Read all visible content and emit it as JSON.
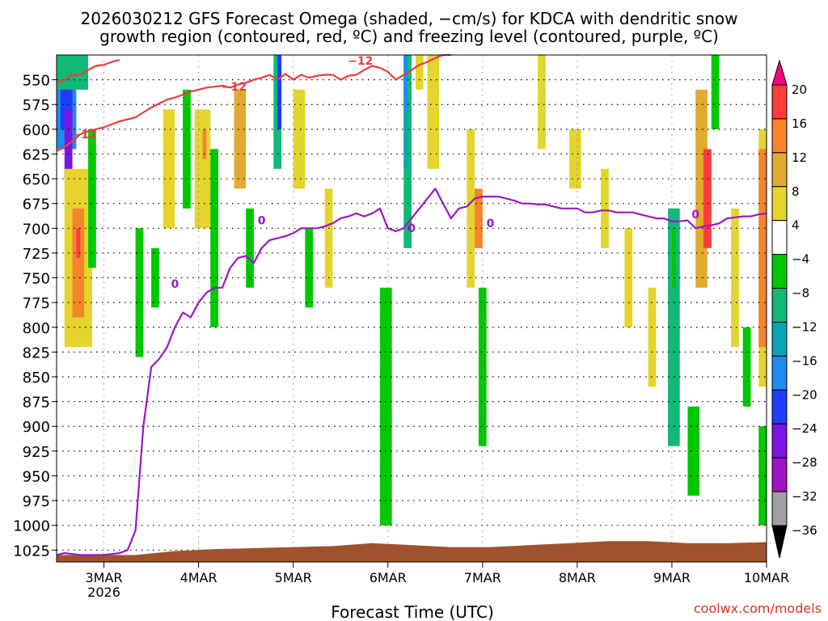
{
  "chart_data": {
    "type": "heatmap",
    "title": "2026030212 GFS Forecast Omega (shaded, −cm/s) for KDCA with dendritic snow",
    "subtitle": "growth region (contoured, red, ºC) and freezing level (contoured, purple, ºC)",
    "xlabel": "Forecast Time (UTC)",
    "ylabel": "",
    "credit": "coolwx.com/models",
    "x_ticks": [
      {
        "label": "3MAR",
        "sub": "2026",
        "t": 12
      },
      {
        "label": "4MAR",
        "sub": "",
        "t": 36
      },
      {
        "label": "5MAR",
        "sub": "",
        "t": 60
      },
      {
        "label": "6MAR",
        "sub": "",
        "t": 84
      },
      {
        "label": "7MAR",
        "sub": "",
        "t": 108
      },
      {
        "label": "8MAR",
        "sub": "",
        "t": 132
      },
      {
        "label": "9MAR",
        "sub": "",
        "t": 156
      },
      {
        "label": "10MAR",
        "sub": "",
        "t": 180
      }
    ],
    "xlim_hours": [
      0,
      180
    ],
    "y_ticks": [
      "550",
      "575",
      "600",
      "625",
      "650",
      "675",
      "700",
      "725",
      "750",
      "775",
      "800",
      "825",
      "850",
      "875",
      "900",
      "925",
      "950",
      "975",
      "1000",
      "1025"
    ],
    "ylim_hpa": [
      1037,
      525
    ],
    "colorbar": {
      "labels": [
        "20",
        "16",
        "12",
        "8",
        "4",
        "−4",
        "−8",
        "−12",
        "−16",
        "−20",
        "−24",
        "−28",
        "−32",
        "−36"
      ],
      "colors": [
        "#ff0080",
        "#ff3b3b",
        "#f6842a",
        "#e2aa2e",
        "#e4d42c",
        "#ffffff",
        "#00c800",
        "#12b878",
        "#0aa6b6",
        "#1e8cf0",
        "#1e3cff",
        "#7a16e0",
        "#9c14c8",
        "#a0a0a0",
        "#000000"
      ]
    },
    "contour_labels": {
      "dgz": "−12",
      "freezing": "0"
    },
    "series": [
      {
        "x": [
          0,
          2,
          4,
          6,
          8,
          10,
          12,
          14,
          16,
          18,
          20,
          22,
          24,
          26,
          28,
          30,
          32,
          34,
          36,
          38,
          40,
          42,
          44,
          46,
          48,
          50,
          52,
          54,
          56,
          58,
          60,
          62,
          64,
          66,
          68,
          70,
          72,
          74,
          76,
          78,
          80,
          82,
          84,
          86,
          88,
          90,
          92,
          94,
          96,
          98,
          100,
          102,
          104,
          106,
          108,
          110,
          112,
          114,
          116,
          118,
          120,
          122,
          124,
          126,
          128,
          130,
          132,
          134,
          136,
          138,
          140,
          142,
          144,
          146,
          148,
          150,
          152,
          154,
          156,
          158,
          160,
          162,
          164,
          166,
          168,
          170,
          172,
          174,
          176,
          178,
          180
        ],
        "y": [
          1030,
          1028,
          1029,
          1030,
          1030,
          1030,
          1030,
          1029,
          1028,
          1025,
          1005,
          900,
          840,
          832,
          820,
          800,
          785,
          790,
          775,
          765,
          760,
          760,
          740,
          730,
          728,
          735,
          720,
          712,
          710,
          708,
          705,
          700,
          700,
          700,
          698,
          695,
          690,
          688,
          685,
          688,
          685,
          680,
          700,
          703,
          700,
          690,
          680,
          670,
          660,
          675,
          690,
          680,
          678,
          670,
          668,
          668,
          668,
          670,
          672,
          675,
          675,
          676,
          676,
          678,
          680,
          680,
          680,
          684,
          684,
          682,
          682,
          684,
          684,
          684,
          686,
          688,
          690,
          690,
          693,
          693,
          692,
          700,
          698,
          697,
          695,
          690,
          689,
          688,
          688,
          686,
          685
        ]
      },
      {
        "x": [
          0,
          2,
          4,
          6,
          8,
          10,
          12,
          14,
          16,
          18,
          20,
          22,
          24,
          26,
          28,
          30,
          32,
          34,
          36,
          38,
          40,
          42,
          44,
          46,
          48,
          50,
          52,
          54,
          56,
          58,
          60,
          62,
          64,
          66,
          68,
          70,
          72,
          74,
          76,
          78,
          80,
          82,
          84,
          86,
          88,
          90,
          92,
          94,
          96,
          98,
          100
        ],
        "y": [
          622,
          618,
          612,
          605,
          602,
          600,
          598,
          595,
          592,
          590,
          588,
          583,
          578,
          574,
          570,
          568,
          565,
          562,
          560,
          558,
          557,
          556,
          558,
          555,
          553,
          550,
          548,
          545,
          550,
          544,
          550,
          545,
          548,
          546,
          545,
          545,
          550,
          546,
          545,
          540,
          536,
          538,
          542,
          550,
          545,
          540,
          535,
          532,
          528,
          525,
          525
        ]
      },
      {
        "x": [
          0,
          2,
          4,
          6,
          8,
          10,
          12,
          14,
          16
        ],
        "y": [
          553,
          550,
          545,
          545,
          540,
          536,
          535,
          532,
          530
        ]
      }
    ],
    "shaded_regions": [
      {
        "t": [
          0,
          5
        ],
        "p": [
          525,
          620
        ],
        "c": "#1e8cf0"
      },
      {
        "t": [
          1,
          4
        ],
        "p": [
          540,
          600
        ],
        "c": "#1e3cff"
      },
      {
        "t": [
          2,
          4
        ],
        "p": [
          580,
          650
        ],
        "c": "#7a16e0"
      },
      {
        "t": [
          0,
          8
        ],
        "p": [
          525,
          560
        ],
        "c": "#12b878"
      },
      {
        "t": [
          2,
          9
        ],
        "p": [
          640,
          820
        ],
        "c": "#e4d42c"
      },
      {
        "t": [
          4,
          7
        ],
        "p": [
          680,
          790
        ],
        "c": "#f6842a"
      },
      {
        "t": [
          5,
          6
        ],
        "p": [
          700,
          730
        ],
        "c": "#ff3b3b"
      },
      {
        "t": [
          8,
          10
        ],
        "p": [
          600,
          740
        ],
        "c": "#00c800"
      },
      {
        "t": [
          20,
          22
        ],
        "p": [
          700,
          830
        ],
        "c": "#00c800"
      },
      {
        "t": [
          24,
          26
        ],
        "p": [
          720,
          780
        ],
        "c": "#00c800"
      },
      {
        "t": [
          27,
          30
        ],
        "p": [
          580,
          700
        ],
        "c": "#e4d42c"
      },
      {
        "t": [
          32,
          34
        ],
        "p": [
          560,
          680
        ],
        "c": "#00c800"
      },
      {
        "t": [
          35,
          39
        ],
        "p": [
          580,
          700
        ],
        "c": "#e4d42c"
      },
      {
        "t": [
          37,
          38
        ],
        "p": [
          600,
          630
        ],
        "c": "#f6842a"
      },
      {
        "t": [
          39,
          41
        ],
        "p": [
          620,
          800
        ],
        "c": "#00c800"
      },
      {
        "t": [
          45,
          48
        ],
        "p": [
          560,
          660
        ],
        "c": "#e2aa2e"
      },
      {
        "t": [
          48,
          50
        ],
        "p": [
          680,
          760
        ],
        "c": "#00c800"
      },
      {
        "t": [
          55,
          57
        ],
        "p": [
          525,
          640
        ],
        "c": "#12b878"
      },
      {
        "t": [
          56,
          57
        ],
        "p": [
          525,
          600
        ],
        "c": "#1e3cff"
      },
      {
        "t": [
          60,
          63
        ],
        "p": [
          560,
          660
        ],
        "c": "#e4d42c"
      },
      {
        "t": [
          63,
          65
        ],
        "p": [
          700,
          780
        ],
        "c": "#00c800"
      },
      {
        "t": [
          68,
          70
        ],
        "p": [
          660,
          760
        ],
        "c": "#e4d42c"
      },
      {
        "t": [
          82,
          85
        ],
        "p": [
          760,
          1000
        ],
        "c": "#00c800"
      },
      {
        "t": [
          88,
          90
        ],
        "p": [
          525,
          720
        ],
        "c": "#12b878"
      },
      {
        "t": [
          88,
          89
        ],
        "p": [
          525,
          640
        ],
        "c": "#0aa6b6"
      },
      {
        "t": [
          88,
          89
        ],
        "p": [
          525,
          580
        ],
        "c": "#1e8cf0"
      },
      {
        "t": [
          91,
          93
        ],
        "p": [
          525,
          560
        ],
        "c": "#e4d42c"
      },
      {
        "t": [
          94,
          97
        ],
        "p": [
          525,
          640
        ],
        "c": "#e4d42c"
      },
      {
        "t": [
          104,
          106
        ],
        "p": [
          600,
          760
        ],
        "c": "#e4d42c"
      },
      {
        "t": [
          106,
          108
        ],
        "p": [
          660,
          720
        ],
        "c": "#f6842a"
      },
      {
        "t": [
          107,
          109
        ],
        "p": [
          760,
          920
        ],
        "c": "#00c800"
      },
      {
        "t": [
          122,
          124
        ],
        "p": [
          525,
          620
        ],
        "c": "#e4d42c"
      },
      {
        "t": [
          130,
          133
        ],
        "p": [
          600,
          660
        ],
        "c": "#e4d42c"
      },
      {
        "t": [
          138,
          140
        ],
        "p": [
          640,
          720
        ],
        "c": "#e4d42c"
      },
      {
        "t": [
          144,
          146
        ],
        "p": [
          700,
          800
        ],
        "c": "#e4d42c"
      },
      {
        "t": [
          150,
          152
        ],
        "p": [
          760,
          860
        ],
        "c": "#e4d42c"
      },
      {
        "t": [
          155,
          158
        ],
        "p": [
          680,
          920
        ],
        "c": "#12b878"
      },
      {
        "t": [
          156,
          157
        ],
        "p": [
          700,
          760
        ],
        "c": "#00c800"
      },
      {
        "t": [
          160,
          163
        ],
        "p": [
          880,
          970
        ],
        "c": "#00c800"
      },
      {
        "t": [
          162,
          165
        ],
        "p": [
          560,
          760
        ],
        "c": "#e2aa2e"
      },
      {
        "t": [
          164,
          166
        ],
        "p": [
          620,
          720
        ],
        "c": "#ff3b3b"
      },
      {
        "t": [
          166,
          168
        ],
        "p": [
          525,
          600
        ],
        "c": "#00c800"
      },
      {
        "t": [
          171,
          173
        ],
        "p": [
          680,
          820
        ],
        "c": "#e4d42c"
      },
      {
        "t": [
          174,
          176
        ],
        "p": [
          800,
          880
        ],
        "c": "#00c800"
      },
      {
        "t": [
          178,
          180
        ],
        "p": [
          600,
          860
        ],
        "c": "#e4d42c"
      },
      {
        "t": [
          178,
          180
        ],
        "p": [
          620,
          820
        ],
        "c": "#f6842a"
      },
      {
        "t": [
          178,
          180
        ],
        "p": [
          900,
          1000
        ],
        "c": "#00c800"
      }
    ],
    "terrain": {
      "color": "#a0522d",
      "t": [
        0,
        10,
        20,
        30,
        40,
        50,
        60,
        70,
        80,
        90,
        100,
        110,
        120,
        130,
        140,
        150,
        160,
        170,
        180
      ],
      "p": [
        1030,
        1030,
        1030,
        1026,
        1024,
        1023,
        1022,
        1021,
        1018,
        1020,
        1022,
        1022,
        1020,
        1018,
        1016,
        1016,
        1018,
        1018,
        1017
      ]
    },
    "grid": true
  }
}
